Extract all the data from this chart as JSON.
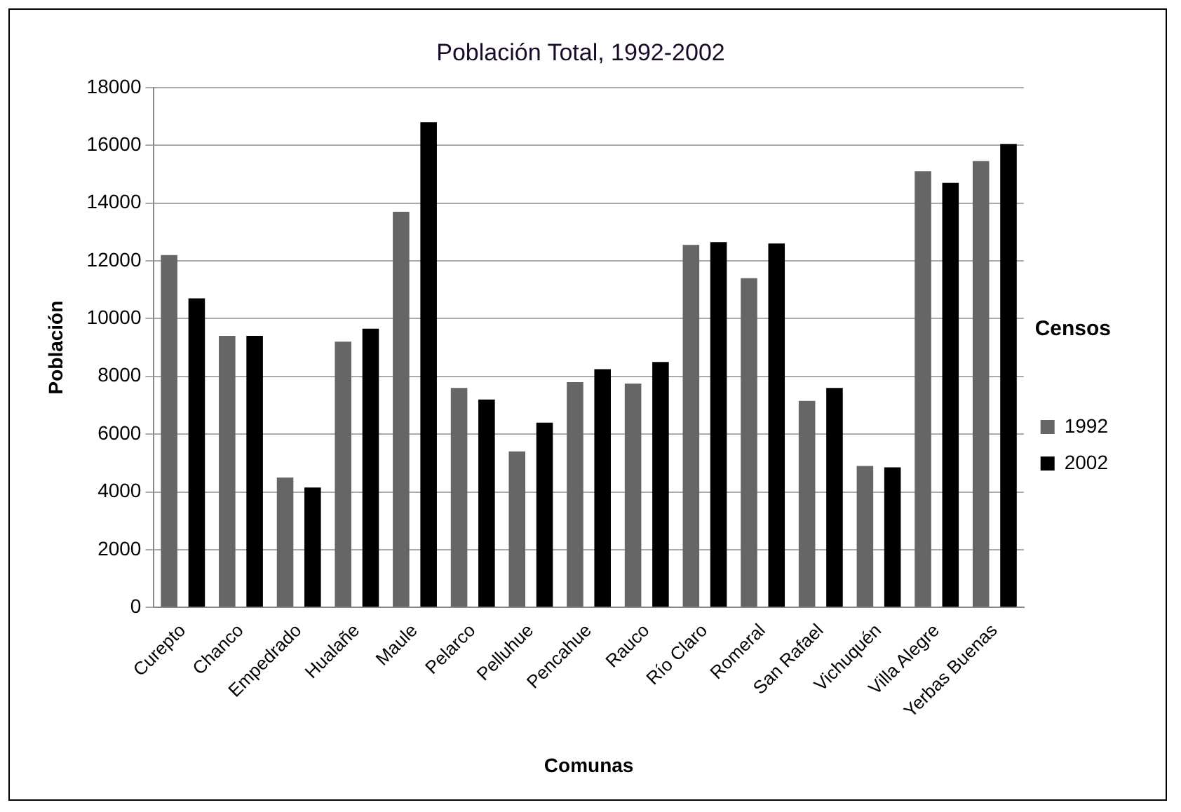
{
  "chart_data": {
    "type": "bar",
    "title": "Población Total, 1992-2002",
    "xlabel": "Comunas",
    "ylabel": "Población",
    "legend_title": "Censos",
    "categories": [
      "Curepto",
      "Chanco",
      "Empedrado",
      "Hualañe",
      "Maule",
      "Pelarco",
      "Pelluhue",
      "Pencahue",
      "Rauco",
      "Río Claro",
      "Romeral",
      "San Rafael",
      "Vichuquén",
      "Villa Alegre",
      "Yerbas Buenas"
    ],
    "series": [
      {
        "name": "1992",
        "color": "#666666",
        "values": [
          12200,
          9400,
          4500,
          9200,
          13700,
          7600,
          5400,
          7800,
          7750,
          12550,
          11400,
          7150,
          4900,
          15100,
          15450
        ]
      },
      {
        "name": "2002",
        "color": "#000000",
        "values": [
          10700,
          9400,
          4150,
          9650,
          16800,
          7200,
          6400,
          8250,
          8500,
          12650,
          12600,
          7600,
          4850,
          14700,
          16050
        ]
      }
    ],
    "ylim": [
      0,
      18000
    ],
    "yticks": [
      0,
      2000,
      4000,
      6000,
      8000,
      10000,
      12000,
      14000,
      16000,
      18000
    ],
    "grid": "y",
    "legend": "right"
  }
}
